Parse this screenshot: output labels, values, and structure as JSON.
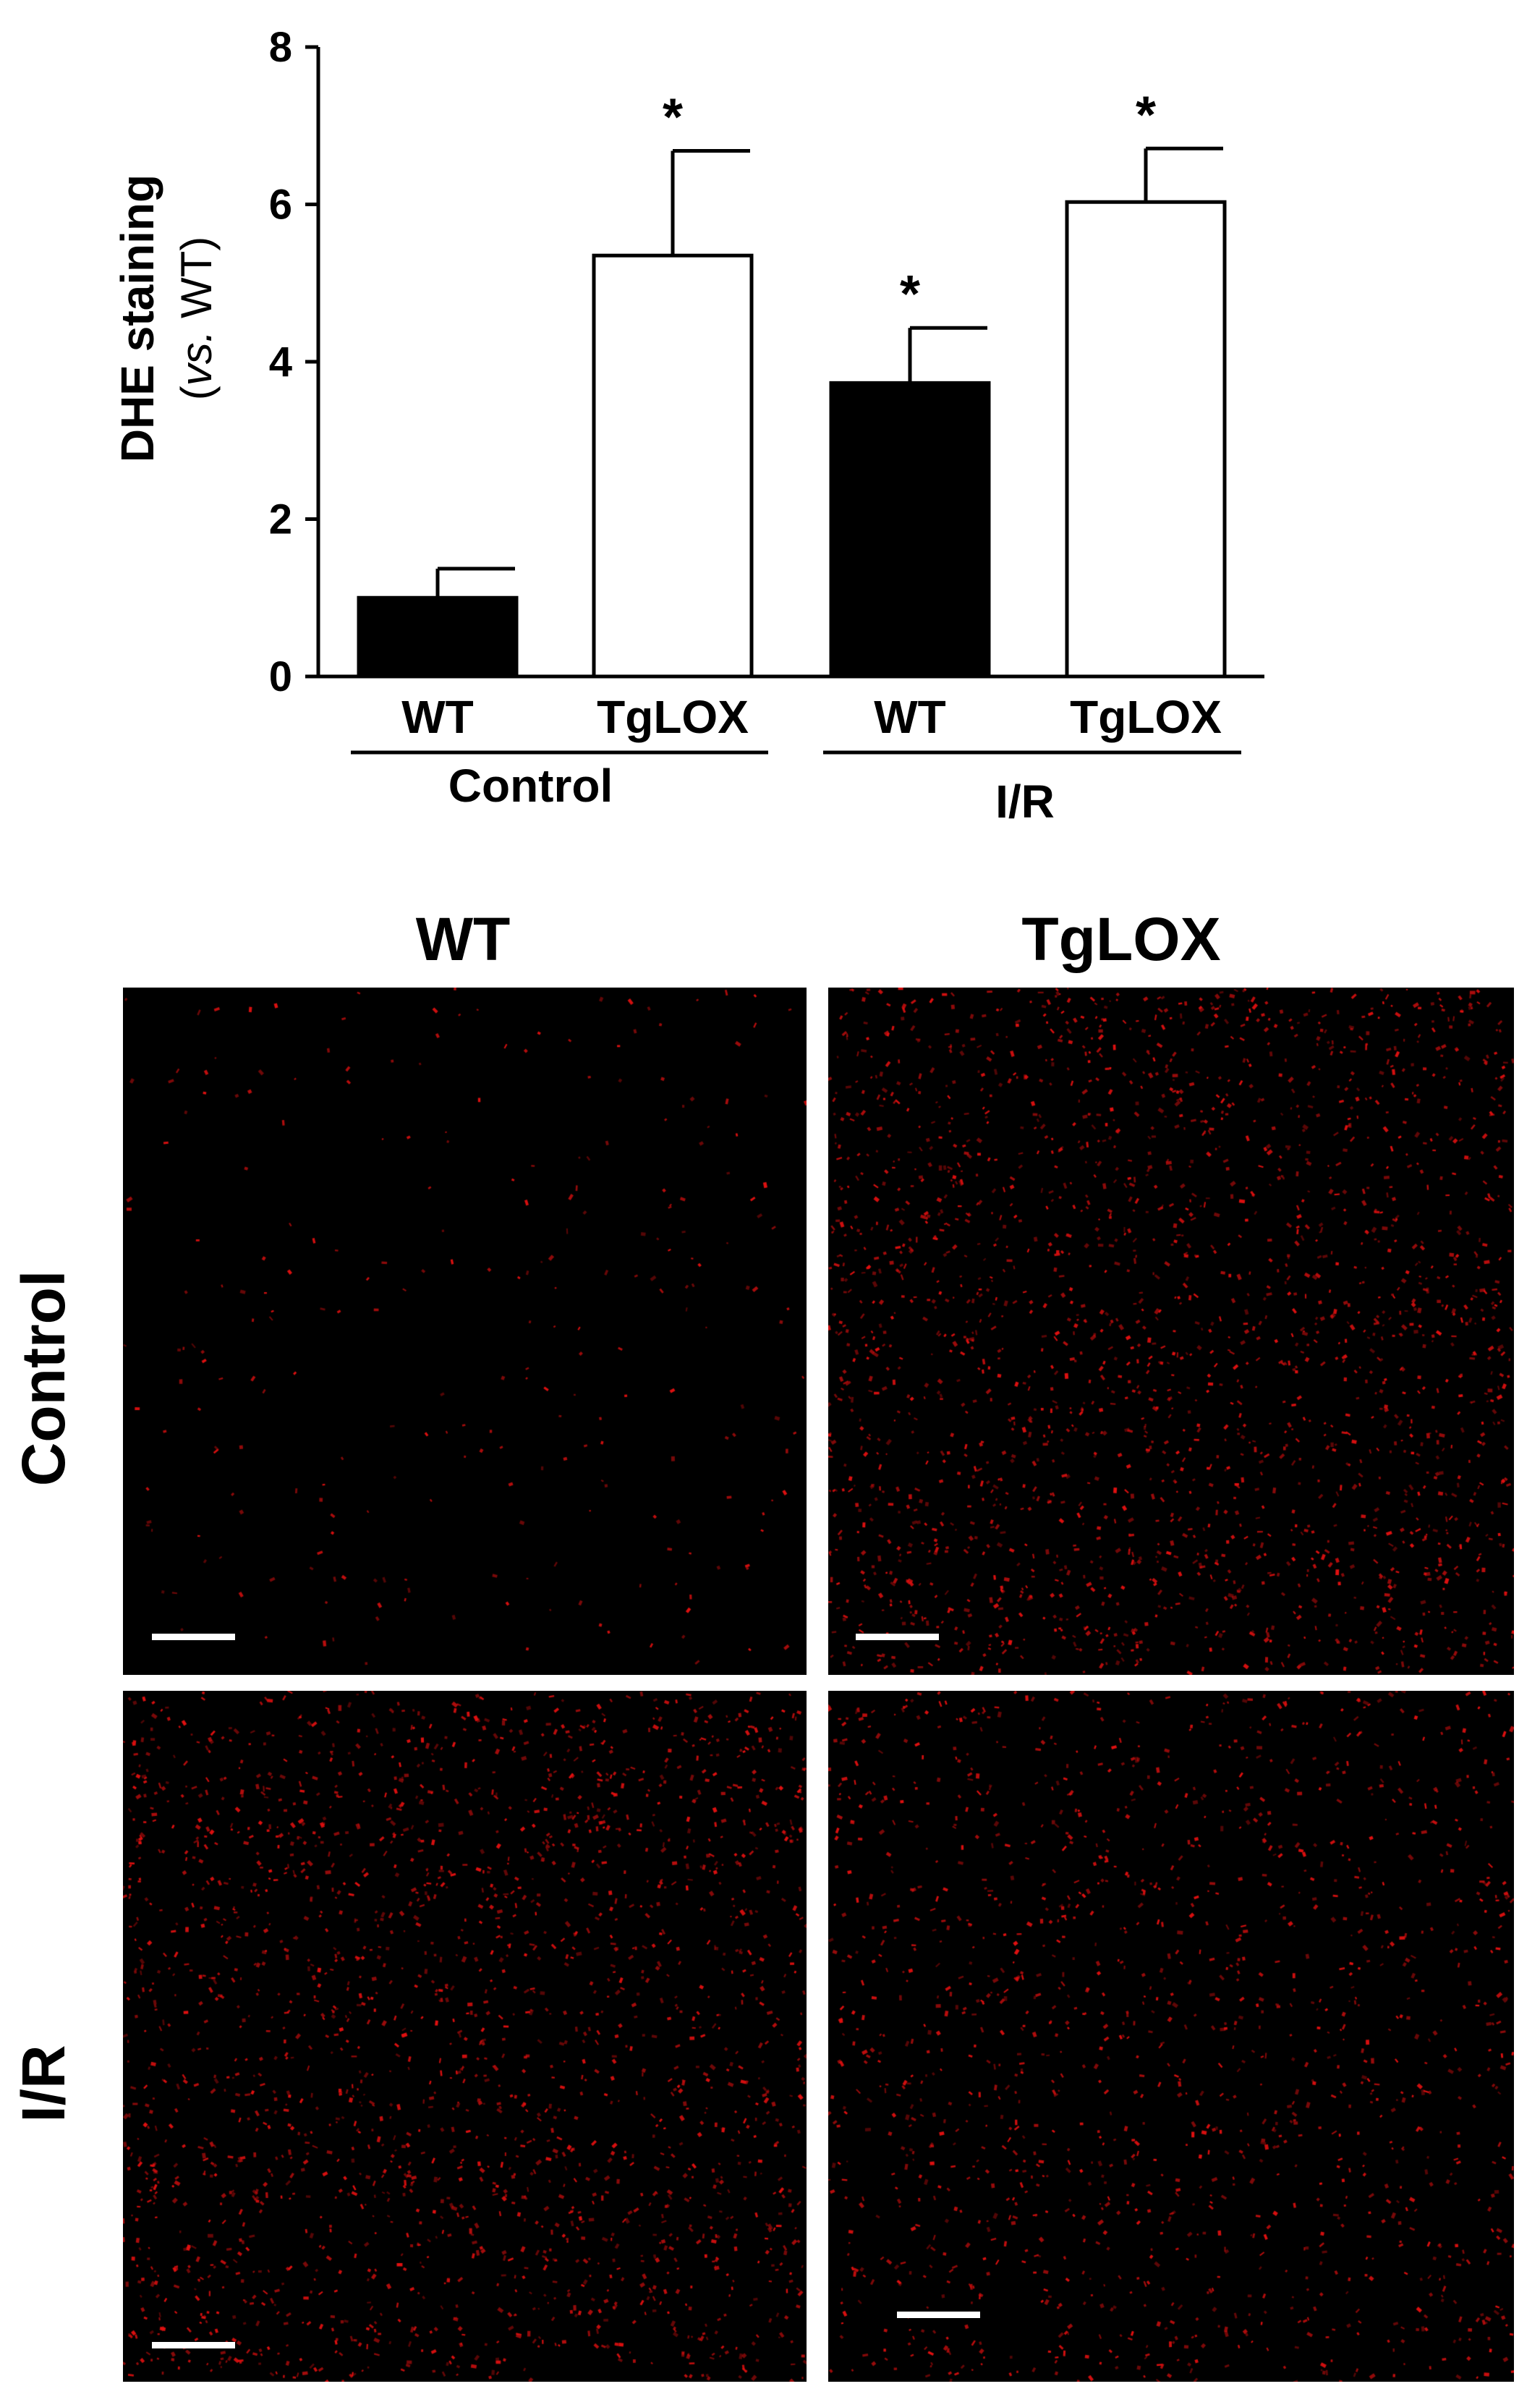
{
  "chart_data": {
    "type": "bar",
    "ylabel_main": "DHE staining",
    "ylabel_sub_italic": "vs.",
    "ylabel_sub_rest": " WT)",
    "ylabel_sub_open": "(",
    "ylim": [
      0,
      8
    ],
    "yticks": [
      "0",
      "2",
      "4",
      "6",
      "8"
    ],
    "ytick_values": [
      0,
      2,
      4,
      6,
      8
    ],
    "grid": false,
    "groups": [
      {
        "label": "Control",
        "bars": [
          {
            "label": "WT",
            "value": 1.0,
            "error": 0.37,
            "fill": "#000000",
            "sig": ""
          },
          {
            "label": "TgLOX",
            "value": 5.35,
            "error": 1.33,
            "fill": "#ffffff",
            "sig": "*"
          }
        ]
      },
      {
        "label": "I/R",
        "bars": [
          {
            "label": "WT",
            "value": 3.73,
            "error": 0.7,
            "fill": "#000000",
            "sig": "*"
          },
          {
            "label": "TgLOX",
            "value": 6.03,
            "error": 0.68,
            "fill": "#ffffff",
            "sig": "*"
          }
        ]
      }
    ]
  },
  "micrographs": {
    "column_titles": [
      "WT",
      "TgLOX"
    ],
    "row_labels": [
      "Control",
      "I/R"
    ],
    "stain_color": "#e01010",
    "panel_background": "#000000",
    "scale_bar_color": "#ffffff",
    "panels": [
      {
        "row": "Control",
        "column": "WT",
        "relative_density": "low"
      },
      {
        "row": "Control",
        "column": "TgLOX",
        "relative_density": "high"
      },
      {
        "row": "I/R",
        "column": "WT",
        "relative_density": "high"
      },
      {
        "row": "I/R",
        "column": "TgLOX",
        "relative_density": "medium"
      }
    ]
  }
}
